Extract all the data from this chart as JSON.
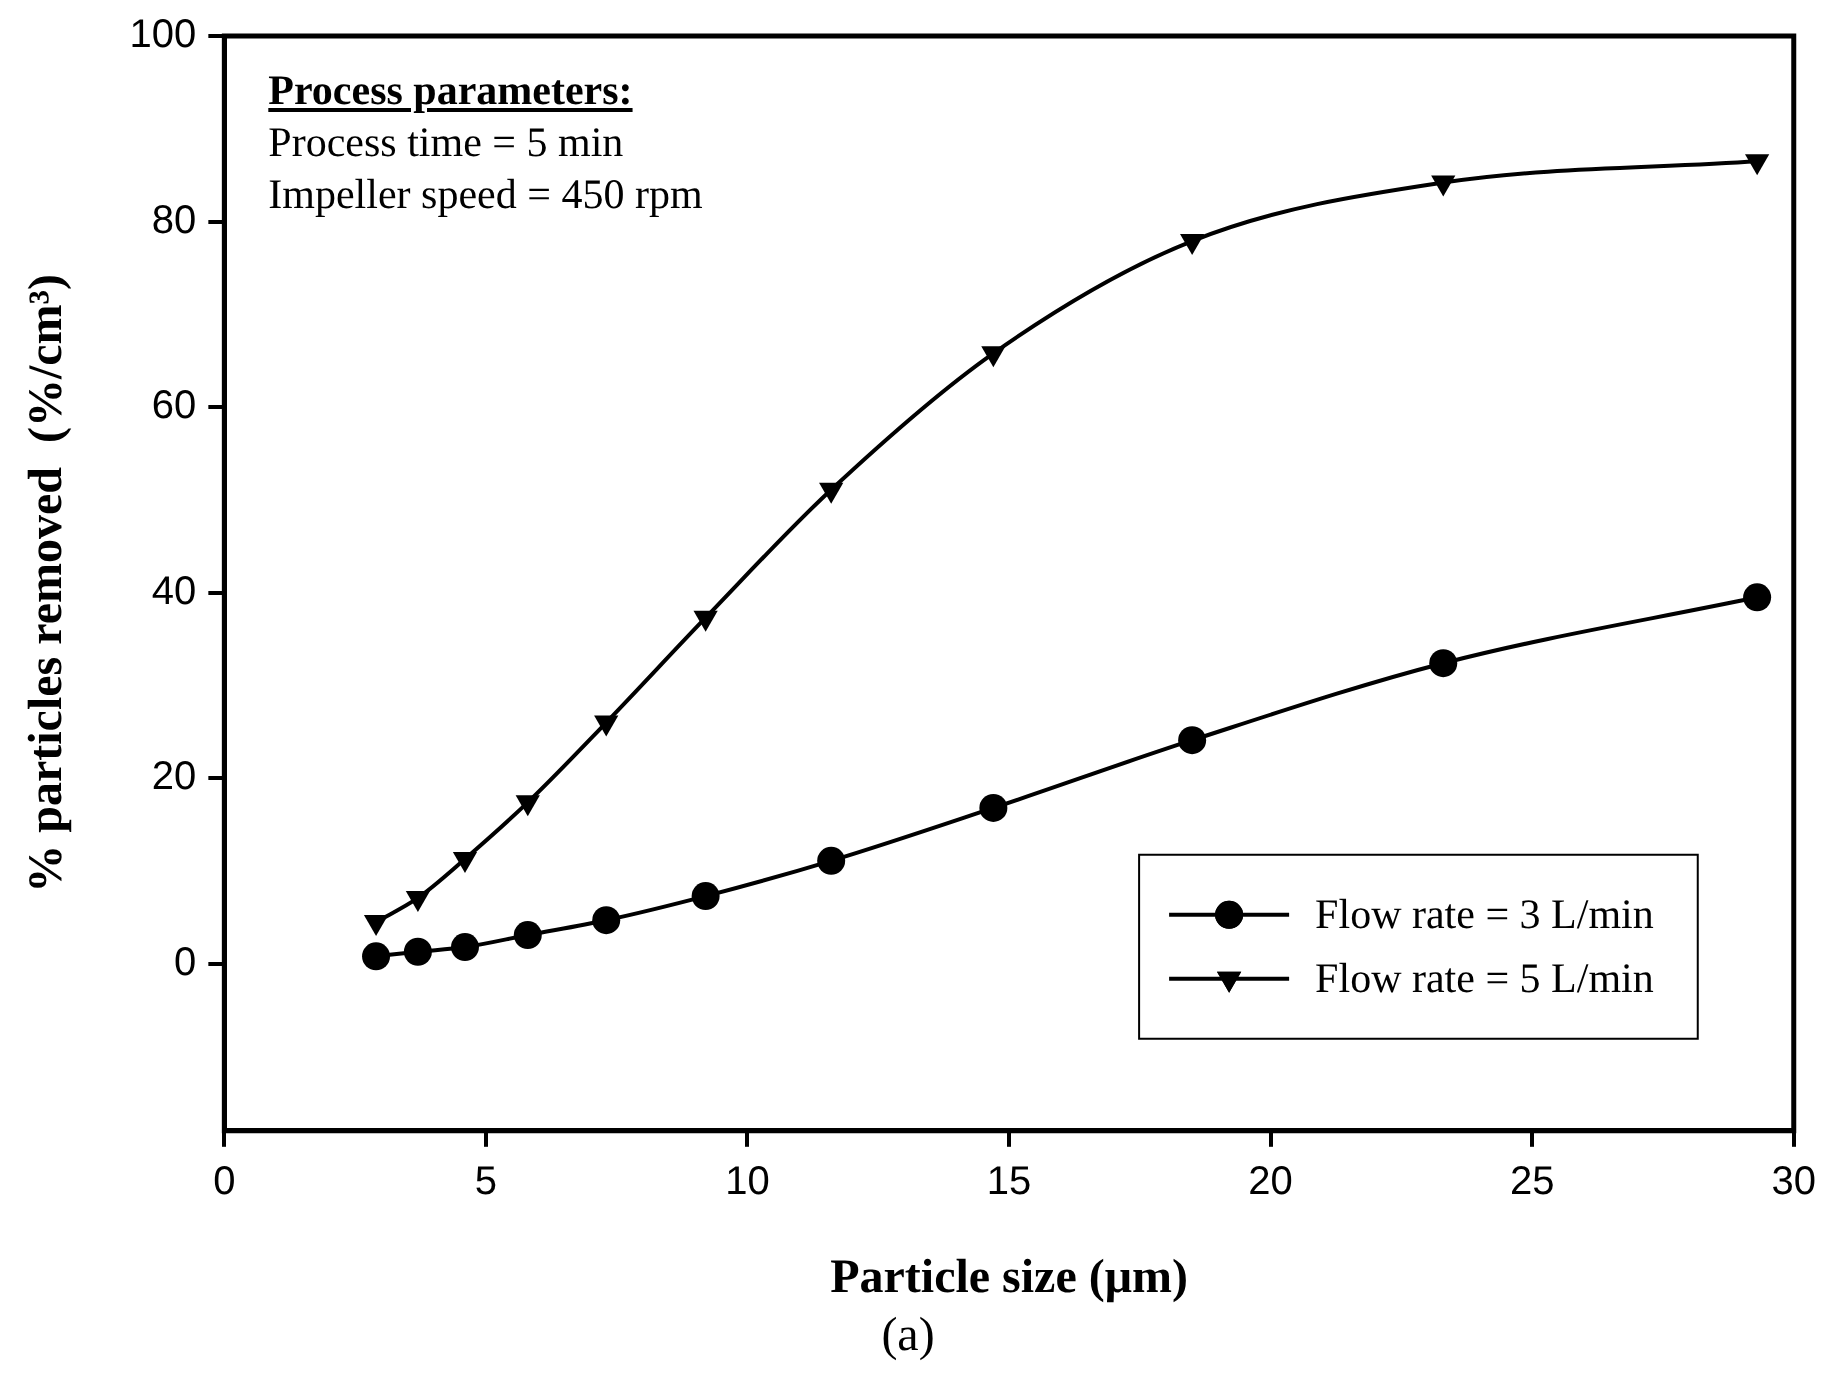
{
  "chart_data": {
    "type": "line",
    "title": "(a)",
    "xlabel": "Particle size (μm)",
    "ylabel": "% particles removed  (%/cm³)",
    "annotations": [
      "Process parameters:",
      "Process time = 5 min",
      "Impeller speed = 450 rpm"
    ],
    "x": [
      2.9,
      3.7,
      4.6,
      5.8,
      7.3,
      9.2,
      11.6,
      14.7,
      18.5,
      23.3,
      29.3
    ],
    "series": [
      {
        "name": "Flow rate = 3 L/min",
        "color": "#000000",
        "marker": "circle",
        "values": [
          0.8,
          1.3,
          1.8,
          3.1,
          4.7,
          7.3,
          11.1,
          16.8,
          24.1,
          32.4,
          39.5
        ]
      },
      {
        "name": "Flow rate = 5 L/min",
        "color": "#000000",
        "marker": "triangle",
        "values": [
          4.5,
          7.1,
          11.3,
          17.4,
          26.0,
          37.3,
          51.1,
          65.8,
          77.9,
          84.2,
          86.5
        ]
      }
    ],
    "xlim": [
      0,
      30
    ],
    "xticks": [
      0,
      5,
      10,
      15,
      20,
      25,
      30
    ],
    "ylim": [
      -18,
      100
    ],
    "yticks": [
      0,
      20,
      40,
      60,
      80,
      100
    ],
    "grid": false,
    "legend": "bottom right",
    "line_style": "solid"
  }
}
